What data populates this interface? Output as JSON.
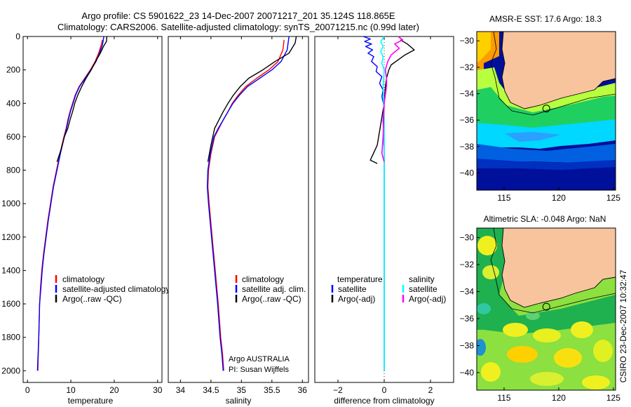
{
  "header": {
    "line1": "Argo profile: CS 5901622_23 14-Dec-2007 20071217_201 35.124S 118.865E",
    "line2": "Climatology: CARS2006. Satellite-adjusted climatology: synTS_20071215.nc (0.99d later)"
  },
  "credit": "CSIRO 23-Dec-2007 10:32:47",
  "colors": {
    "climatology": "#ff0000",
    "satellite": "#0000ff",
    "argo": "#000000",
    "sal_satellite": "#00ffff",
    "sal_argo": "#ff00ff",
    "land": "#f7c49d"
  },
  "chart_data": [
    {
      "id": "temperature",
      "type": "line",
      "xlabel": "temperature",
      "ylabel": "",
      "xlim": [
        -1,
        31
      ],
      "ylim": [
        2070,
        0
      ],
      "xticks": [
        0,
        10,
        20,
        30
      ],
      "yticks": [
        0,
        200,
        400,
        600,
        800,
        1000,
        1200,
        1400,
        1600,
        1800,
        2000
      ],
      "legend": [
        "climatology",
        "satellite-adjusted climatology",
        "Argo(..raw -QC)"
      ],
      "series": [
        {
          "name": "climatology",
          "color": "#ff0000",
          "width": 1.4,
          "x": [
            17.3,
            17.0,
            16.4,
            15.6,
            14.5,
            13.2,
            11.9,
            11.0,
            10.4,
            9.8,
            9.3,
            8.9,
            8.4,
            7.5,
            6.7,
            5.9,
            5.3,
            4.7,
            4.2,
            3.7,
            3.3,
            3.0,
            2.8,
            2.6,
            2.4
          ],
          "y": [
            20,
            50,
            100,
            150,
            200,
            250,
            300,
            350,
            400,
            450,
            500,
            550,
            600,
            700,
            800,
            900,
            1000,
            1100,
            1200,
            1300,
            1400,
            1500,
            1600,
            1800,
            2000
          ]
        },
        {
          "name": "satellite-adjusted climatology",
          "color": "#0000ff",
          "width": 1.4,
          "x": [
            17.6,
            17.3,
            16.6,
            15.8,
            14.6,
            13.3,
            12.0,
            11.1,
            10.5,
            9.9,
            9.4,
            9.0,
            8.5,
            7.6,
            6.8,
            6.0,
            5.4,
            4.8,
            4.3,
            3.8,
            3.4,
            3.1,
            2.8,
            2.6,
            2.3
          ],
          "y": [
            0,
            50,
            100,
            150,
            200,
            250,
            300,
            350,
            400,
            450,
            500,
            550,
            600,
            700,
            800,
            900,
            1000,
            1100,
            1200,
            1300,
            1400,
            1500,
            1600,
            1800,
            2000
          ]
        },
        {
          "name": "Argo(..raw -QC)",
          "color": "#000000",
          "width": 1.4,
          "x": [
            18.3,
            18.2,
            17.5,
            16.8,
            15.7,
            14.7,
            13.5,
            12.5,
            11.6,
            10.9,
            10.4,
            9.8,
            9.3,
            8.5,
            7.7,
            6.8
          ],
          "y": [
            0,
            30,
            60,
            100,
            150,
            200,
            250,
            300,
            350,
            400,
            450,
            500,
            550,
            600,
            680,
            750
          ]
        }
      ]
    },
    {
      "id": "salinity",
      "type": "line",
      "xlabel": "salinity",
      "ylabel": "",
      "xlim": [
        33.8,
        36.1
      ],
      "ylim": [
        2070,
        0
      ],
      "xticks": [
        34,
        34.5,
        35,
        35.5,
        36
      ],
      "legend": [
        "climatology",
        "satellite adj. clim.",
        "Argo(..raw -QC)"
      ],
      "annotation": [
        "Argo AUSTRALIA",
        "PI: Susan Wijffels"
      ],
      "series": [
        {
          "name": "climatology",
          "color": "#ff0000",
          "width": 1.4,
          "x": [
            35.7,
            35.68,
            35.6,
            35.45,
            35.25,
            35.07,
            34.95,
            34.85,
            34.78,
            34.7,
            34.63,
            34.56,
            34.5,
            34.46,
            34.45,
            34.47,
            34.52,
            34.57,
            34.62,
            34.66,
            34.69,
            34.71
          ],
          "y": [
            20,
            80,
            150,
            200,
            250,
            300,
            350,
            400,
            450,
            500,
            550,
            600,
            700,
            800,
            900,
            1000,
            1200,
            1400,
            1600,
            1800,
            1900,
            2000
          ]
        },
        {
          "name": "satellite adj. clim.",
          "color": "#0000ff",
          "width": 1.4,
          "x": [
            35.78,
            35.75,
            35.65,
            35.5,
            35.3,
            35.1,
            34.97,
            34.86,
            34.78,
            34.7,
            34.62,
            34.55,
            34.49,
            34.45,
            34.44,
            34.46,
            34.51,
            34.56,
            34.61,
            34.65,
            34.68,
            34.7
          ],
          "y": [
            0,
            80,
            150,
            200,
            250,
            300,
            350,
            400,
            450,
            500,
            550,
            600,
            700,
            800,
            900,
            1000,
            1200,
            1400,
            1600,
            1800,
            1900,
            2000
          ]
        },
        {
          "name": "Argo(..raw -QC)",
          "color": "#000000",
          "width": 1.4,
          "x": [
            35.9,
            35.88,
            35.78,
            35.55,
            35.35,
            35.12,
            34.98,
            34.87,
            34.78,
            34.7,
            34.63,
            34.56,
            34.5,
            34.45
          ],
          "y": [
            0,
            40,
            100,
            150,
            200,
            250,
            300,
            350,
            400,
            450,
            500,
            550,
            650,
            750
          ]
        }
      ]
    },
    {
      "id": "difference",
      "type": "line",
      "xlabel": "difference from climatology",
      "ylabel": "",
      "xlim": [
        -3,
        3
      ],
      "ylim": [
        2070,
        0
      ],
      "xticks": [
        -2,
        0,
        2
      ],
      "legend_groups": [
        {
          "title": "temperature",
          "items": [
            "satellite",
            "Argo(-adj)"
          ]
        },
        {
          "title": "salinity",
          "items": [
            "satellite",
            "Argo(-adj)"
          ]
        }
      ],
      "series": [
        {
          "name": "temperature satellite",
          "color": "#0000ff",
          "width": 1.4,
          "x": [
            -0.9,
            -0.6,
            -0.85,
            -0.55,
            -0.8,
            -0.5,
            -0.7,
            -0.45,
            -0.55,
            -0.3,
            -0.35,
            -0.1,
            -0.2,
            -0.05,
            -0.1,
            0,
            -0.05,
            0,
            0,
            0
          ],
          "y": [
            0,
            15,
            30,
            45,
            60,
            80,
            100,
            120,
            150,
            180,
            210,
            240,
            280,
            320,
            360,
            420,
            500,
            700,
            1200,
            2000
          ]
        },
        {
          "name": "temperature Argo(-adj)",
          "color": "#000000",
          "width": 1.4,
          "x": [
            0.7,
            1.0,
            1.3,
            0.9,
            0.6,
            0.3,
            0.2,
            0.1,
            0.05,
            0,
            -0.3,
            -0.6,
            -0.3
          ],
          "y": [
            20,
            45,
            80,
            110,
            140,
            170,
            200,
            250,
            300,
            400,
            650,
            740,
            760
          ]
        },
        {
          "name": "salinity satellite",
          "color": "#00ffff",
          "width": 1.6,
          "x": [
            0,
            -0.15,
            -0.05,
            -0.15,
            -0.05,
            -0.1,
            0,
            -0.05,
            0,
            0,
            0
          ],
          "y": [
            0,
            30,
            60,
            90,
            120,
            160,
            200,
            300,
            500,
            1000,
            2000
          ]
        },
        {
          "name": "salinity Argo(-adj)",
          "color": "#ff00ff",
          "width": 1.6,
          "x": [
            0.6,
            0.8,
            0.45,
            0.65,
            0.3,
            0.15,
            0.05,
            0.1,
            0.1,
            0,
            -0.05,
            -0.1,
            0
          ],
          "y": [
            0,
            20,
            45,
            70,
            110,
            150,
            200,
            250,
            300,
            400,
            600,
            700,
            750
          ]
        }
      ]
    },
    {
      "id": "sst_map",
      "type": "heatmap",
      "title": "AMSR-E SST: 17.6 Argo: 18.3",
      "xlim": [
        112.5,
        125.2
      ],
      "ylim": [
        -41.3,
        -29.3
      ],
      "xticks": [
        115,
        120,
        125
      ],
      "yticks": [
        -30,
        -32,
        -34,
        -36,
        -38,
        -40
      ],
      "marker": {
        "lon": 118.865,
        "lat": -35.124
      }
    },
    {
      "id": "sla_map",
      "type": "heatmap",
      "title": "Altimetric SLA: -0.048 Argo: NaN",
      "xlim": [
        112.5,
        125.2
      ],
      "ylim": [
        -41.3,
        -29.3
      ],
      "xticks": [
        115,
        120,
        125
      ],
      "yticks": [
        -30,
        -32,
        -34,
        -36,
        -38,
        -40
      ],
      "marker": {
        "lon": 118.865,
        "lat": -35.124
      }
    }
  ]
}
